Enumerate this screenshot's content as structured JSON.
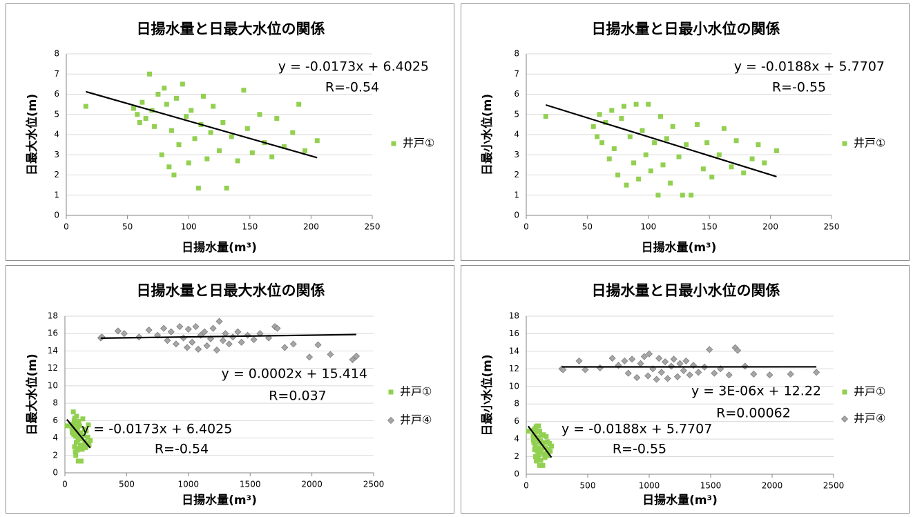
{
  "chart_data": [
    {
      "type": "scatter",
      "title": "日揚水量と日最大水位の関係",
      "xlabel": "日揚水量(m³)",
      "ylabel": "日最大水位(m)",
      "xlim": [
        0,
        250
      ],
      "ylim": [
        0,
        8
      ],
      "xticks": [
        0,
        50,
        100,
        150,
        200,
        250
      ],
      "yticks": [
        0,
        1,
        2,
        3,
        4,
        5,
        6,
        7,
        8
      ],
      "grid": true,
      "series": [
        {
          "name": "井戸①",
          "color": "#92d050",
          "marker": "square",
          "x": [
            16,
            55,
            58,
            60,
            62,
            65,
            68,
            70,
            72,
            75,
            78,
            80,
            82,
            84,
            86,
            88,
            90,
            92,
            95,
            98,
            100,
            102,
            105,
            108,
            110,
            112,
            115,
            118,
            120,
            125,
            128,
            131,
            135,
            140,
            145,
            148,
            152,
            158,
            162,
            168,
            172,
            178,
            185,
            190,
            195,
            205
          ],
          "y": [
            5.4,
            5.3,
            5.0,
            4.6,
            5.6,
            4.8,
            7.0,
            5.2,
            4.4,
            6.0,
            3.0,
            6.3,
            5.5,
            2.4,
            4.2,
            2.0,
            5.8,
            3.5,
            6.5,
            4.9,
            2.6,
            5.2,
            3.8,
            1.35,
            4.5,
            5.9,
            2.8,
            4.1,
            5.4,
            3.2,
            4.6,
            1.35,
            3.9,
            2.7,
            6.2,
            4.3,
            3.1,
            5.0,
            3.6,
            2.9,
            4.8,
            3.4,
            4.1,
            5.5,
            3.2,
            3.7
          ]
        }
      ],
      "trendlines": [
        {
          "x": [
            16,
            205
          ],
          "y": [
            6.126,
            2.856
          ],
          "equation": "y = -0.0173x + 6.4025",
          "r": "R=-0.54"
        }
      ]
    },
    {
      "type": "scatter",
      "title": "日揚水量と日最小水位の関係",
      "xlabel": "日揚水量(m³)",
      "ylabel": "日最小水位(m)",
      "xlim": [
        0,
        250
      ],
      "ylim": [
        0,
        8
      ],
      "xticks": [
        0,
        50,
        100,
        150,
        200,
        250
      ],
      "yticks": [
        0,
        1,
        2,
        3,
        4,
        5,
        6,
        7,
        8
      ],
      "grid": true,
      "series": [
        {
          "name": "井戸①",
          "color": "#92d050",
          "marker": "square",
          "x": [
            16,
            55,
            58,
            60,
            62,
            65,
            68,
            70,
            72,
            75,
            78,
            80,
            82,
            85,
            88,
            90,
            92,
            95,
            98,
            100,
            102,
            105,
            108,
            110,
            112,
            115,
            118,
            120,
            125,
            128,
            131,
            135,
            140,
            145,
            148,
            152,
            158,
            162,
            168,
            172,
            178,
            185,
            190,
            195,
            205
          ],
          "y": [
            4.9,
            4.4,
            3.9,
            5.0,
            3.6,
            4.6,
            2.8,
            5.2,
            3.3,
            2.0,
            4.8,
            5.4,
            1.5,
            3.9,
            2.6,
            5.5,
            1.8,
            4.2,
            3.0,
            5.5,
            2.2,
            3.6,
            1.0,
            4.9,
            2.5,
            3.8,
            1.6,
            4.4,
            2.9,
            1.0,
            3.5,
            1.0,
            4.5,
            2.3,
            3.6,
            1.9,
            3.0,
            4.3,
            2.4,
            3.7,
            2.1,
            2.8,
            3.5,
            2.6,
            3.2
          ]
        }
      ],
      "trendlines": [
        {
          "x": [
            16,
            205
          ],
          "y": [
            5.47,
            1.917
          ],
          "equation": "y = -0.0188x + 5.7707",
          "r": "R=-0.55"
        }
      ]
    },
    {
      "type": "scatter",
      "title": "日揚水量と日最大水位の関係",
      "xlabel": "日揚水量(m³)",
      "ylabel": "日最大水位(m)",
      "xlim": [
        0,
        2500
      ],
      "ylim": [
        0,
        18
      ],
      "xticks": [
        0,
        500,
        1000,
        1500,
        2000,
        2500
      ],
      "yticks": [
        0,
        2,
        4,
        6,
        8,
        10,
        12,
        14,
        16,
        18
      ],
      "grid": true,
      "series": [
        {
          "name": "井戸①",
          "color": "#92d050",
          "marker": "square",
          "x": [
            16,
            55,
            58,
            60,
            62,
            65,
            68,
            70,
            72,
            75,
            78,
            80,
            82,
            84,
            86,
            88,
            90,
            92,
            95,
            98,
            100,
            102,
            105,
            108,
            110,
            112,
            115,
            118,
            120,
            125,
            128,
            131,
            135,
            140,
            145,
            148,
            152,
            158,
            162,
            168,
            172,
            178,
            185,
            190,
            195,
            205
          ],
          "y": [
            5.4,
            5.3,
            5.0,
            4.6,
            5.6,
            4.8,
            7.0,
            5.2,
            4.4,
            6.0,
            3.0,
            6.3,
            5.5,
            2.4,
            4.2,
            2.0,
            5.8,
            3.5,
            6.5,
            4.9,
            2.6,
            5.2,
            3.8,
            1.35,
            4.5,
            5.9,
            2.8,
            4.1,
            5.4,
            3.2,
            4.6,
            1.35,
            3.9,
            2.7,
            6.2,
            4.3,
            3.1,
            5.0,
            3.6,
            2.9,
            4.8,
            3.4,
            4.1,
            5.5,
            3.2,
            3.7
          ]
        },
        {
          "name": "井戸④",
          "color": "#a6a6a6",
          "marker": "diamond",
          "x": [
            290,
            300,
            430,
            480,
            600,
            680,
            750,
            800,
            830,
            860,
            900,
            930,
            960,
            990,
            1000,
            1030,
            1060,
            1080,
            1100,
            1130,
            1150,
            1180,
            1200,
            1230,
            1250,
            1280,
            1300,
            1330,
            1360,
            1400,
            1430,
            1480,
            1530,
            1580,
            1650,
            1700,
            1720,
            1780,
            1850,
            1980,
            2050,
            2150,
            2330,
            2360
          ],
          "y": [
            15.5,
            15.6,
            16.3,
            16.0,
            15.6,
            16.4,
            15.8,
            16.6,
            15.2,
            16.2,
            14.8,
            16.8,
            15.5,
            14.4,
            16.5,
            15.0,
            16.8,
            14.2,
            15.8,
            16.2,
            14.6,
            15.4,
            16.6,
            14.1,
            17.4,
            15.2,
            16.0,
            14.8,
            15.6,
            16.2,
            15.0,
            15.8,
            15.3,
            16.0,
            15.5,
            16.8,
            16.6,
            14.4,
            14.8,
            13.3,
            14.7,
            13.6,
            13.0,
            13.4
          ]
        }
      ],
      "trendlines": [
        {
          "x": [
            290,
            2360
          ],
          "y": [
            15.472,
            15.886
          ],
          "equation": "y = 0.0002x + 15.414",
          "r": "R=0.037"
        },
        {
          "x": [
            16,
            205
          ],
          "y": [
            6.126,
            2.856
          ],
          "equation": "y = -0.0173x + 6.4025",
          "r": "R=-0.54"
        }
      ]
    },
    {
      "type": "scatter",
      "title": "日揚水量と日最小水位の関係",
      "xlabel": "日揚水量(m³)",
      "ylabel": "日最小水位(m)",
      "xlim": [
        0,
        2500
      ],
      "ylim": [
        0,
        18
      ],
      "xticks": [
        0,
        500,
        1000,
        1500,
        2000,
        2500
      ],
      "yticks": [
        0,
        2,
        4,
        6,
        8,
        10,
        12,
        14,
        16,
        18
      ],
      "grid": true,
      "series": [
        {
          "name": "井戸①",
          "color": "#92d050",
          "marker": "square",
          "x": [
            16,
            55,
            58,
            60,
            62,
            65,
            68,
            70,
            72,
            75,
            78,
            80,
            82,
            85,
            88,
            90,
            92,
            95,
            98,
            100,
            102,
            105,
            108,
            110,
            112,
            115,
            118,
            120,
            125,
            128,
            131,
            135,
            140,
            145,
            148,
            152,
            158,
            162,
            168,
            172,
            178,
            185,
            190,
            195,
            205
          ],
          "y": [
            4.9,
            4.4,
            3.9,
            5.0,
            3.6,
            4.6,
            2.8,
            5.2,
            3.3,
            2.0,
            4.8,
            5.4,
            1.5,
            3.9,
            2.6,
            5.5,
            1.8,
            4.2,
            3.0,
            5.5,
            2.2,
            3.6,
            1.0,
            4.9,
            2.5,
            3.8,
            1.6,
            4.4,
            2.9,
            1.0,
            3.5,
            1.0,
            4.5,
            2.3,
            3.6,
            1.9,
            3.0,
            4.3,
            2.4,
            3.7,
            2.1,
            2.8,
            3.5,
            2.6,
            3.2
          ]
        },
        {
          "name": "井戸④",
          "color": "#a6a6a6",
          "marker": "diamond",
          "x": [
            290,
            300,
            430,
            480,
            600,
            700,
            750,
            800,
            830,
            860,
            900,
            930,
            960,
            990,
            1000,
            1030,
            1060,
            1080,
            1100,
            1130,
            1150,
            1180,
            1200,
            1230,
            1250,
            1280,
            1300,
            1330,
            1360,
            1400,
            1450,
            1490,
            1530,
            1580,
            1650,
            1700,
            1720,
            1780,
            1850,
            1980,
            2150,
            2360
          ],
          "y": [
            12.0,
            11.9,
            12.9,
            11.9,
            12.1,
            13.2,
            12.4,
            12.9,
            11.5,
            13.1,
            11.0,
            12.6,
            13.4,
            11.2,
            13.7,
            12.0,
            10.8,
            13.2,
            11.6,
            12.8,
            10.9,
            12.3,
            13.1,
            11.1,
            12.6,
            11.8,
            12.9,
            11.3,
            12.4,
            11.6,
            12.2,
            14.2,
            11.5,
            12.0,
            11.3,
            14.4,
            14.1,
            12.3,
            11.4,
            11.3,
            11.4,
            11.6
          ]
        }
      ],
      "trendlines": [
        {
          "x": [
            290,
            2360
          ],
          "y": [
            12.221,
            12.227
          ],
          "equation": "y = 3E-06x + 12.22",
          "r": "R=0.00062"
        },
        {
          "x": [
            16,
            205
          ],
          "y": [
            5.47,
            1.917
          ],
          "equation": "y = -0.0188x + 5.7707",
          "r": "R=-0.55"
        }
      ]
    }
  ]
}
